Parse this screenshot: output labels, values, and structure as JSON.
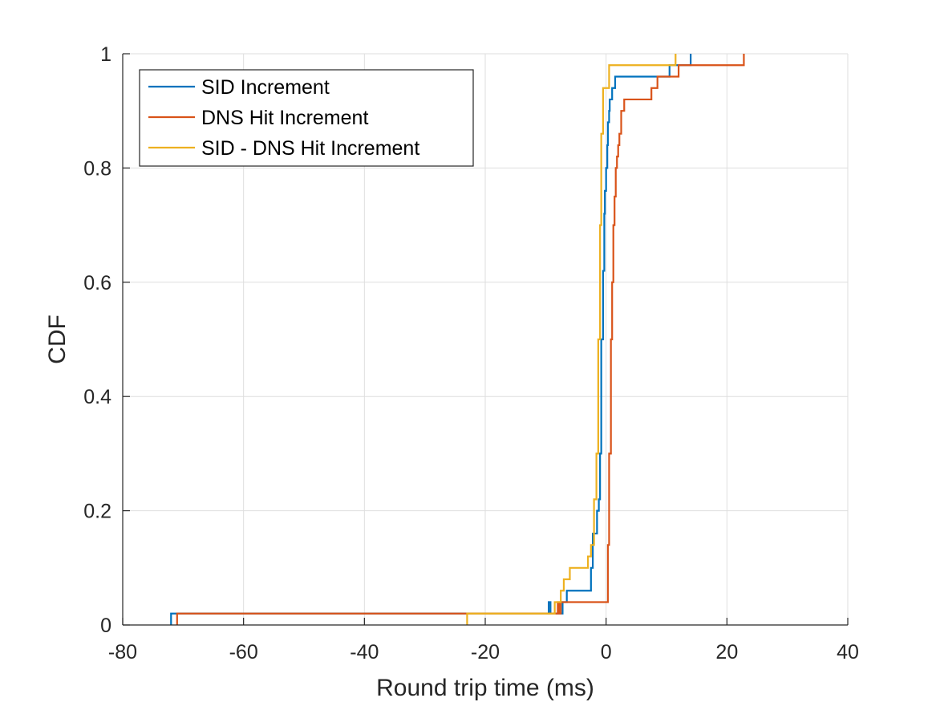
{
  "chart_data": {
    "type": "line",
    "title": "",
    "xlabel": "Round trip time (ms)",
    "ylabel": "CDF",
    "xlim": [
      -80,
      40
    ],
    "ylim": [
      0,
      1
    ],
    "xticks": [
      -80,
      -60,
      -40,
      -20,
      0,
      20,
      40
    ],
    "xtick_labels": [
      "-80",
      "-60",
      "-40",
      "-20",
      "0",
      "20",
      "40"
    ],
    "yticks": [
      0,
      0.2,
      0.4,
      0.6,
      0.8,
      1
    ],
    "ytick_labels": [
      "0",
      "0.2",
      "0.4",
      "0.6",
      "0.8",
      "1"
    ],
    "grid": true,
    "legend_position": "top-left",
    "series": [
      {
        "name": "SID Increment",
        "color": "#0072BD",
        "x": [
          -72,
          -9.5,
          -9.2,
          -7.2,
          -7,
          -6.5,
          -2.5,
          -2.2,
          -1.5,
          -1.2,
          -1.0,
          -0.8,
          -0.5,
          -0.3,
          -0.2,
          0.0,
          0.2,
          0.3,
          0.5,
          0.6,
          0.8,
          1.0,
          1.5,
          9.0,
          10.5,
          14.0
        ],
        "y": [
          0.02,
          0.04,
          0.02,
          0.04,
          0.04,
          0.06,
          0.1,
          0.16,
          0.2,
          0.22,
          0.3,
          0.5,
          0.62,
          0.72,
          0.76,
          0.8,
          0.84,
          0.88,
          0.9,
          0.92,
          0.92,
          0.94,
          0.96,
          0.96,
          0.98,
          1.0
        ]
      },
      {
        "name": "DNS Hit Increment",
        "color": "#D95319",
        "x": [
          -71,
          -8,
          -7.8,
          -7.5,
          -0.5,
          0.3,
          0.5,
          0.8,
          1.0,
          1.2,
          1.4,
          1.6,
          1.8,
          2.0,
          2.2,
          2.5,
          3.0,
          4.0,
          7.5,
          8.5,
          9.5,
          10.0,
          12.0,
          22.8
        ],
        "y": [
          0.02,
          0.04,
          0.02,
          0.04,
          0.04,
          0.14,
          0.3,
          0.5,
          0.6,
          0.7,
          0.75,
          0.8,
          0.82,
          0.84,
          0.86,
          0.9,
          0.92,
          0.92,
          0.94,
          0.96,
          0.96,
          0.96,
          0.98,
          1.0
        ]
      },
      {
        "name": "SID - DNS Hit Increment",
        "color": "#EDB120",
        "x": [
          -23,
          -9.0,
          -8.5,
          -7.5,
          -7.0,
          -6.0,
          -3.0,
          -2.5,
          -2.0,
          -1.6,
          -1.3,
          -1.0,
          -0.8,
          -0.5,
          -0.2,
          0.5,
          10.0,
          11.5
        ],
        "y": [
          0.02,
          0.02,
          0.04,
          0.06,
          0.08,
          0.1,
          0.12,
          0.14,
          0.22,
          0.3,
          0.5,
          0.7,
          0.86,
          0.94,
          0.94,
          0.98,
          0.98,
          1.0
        ]
      }
    ]
  }
}
